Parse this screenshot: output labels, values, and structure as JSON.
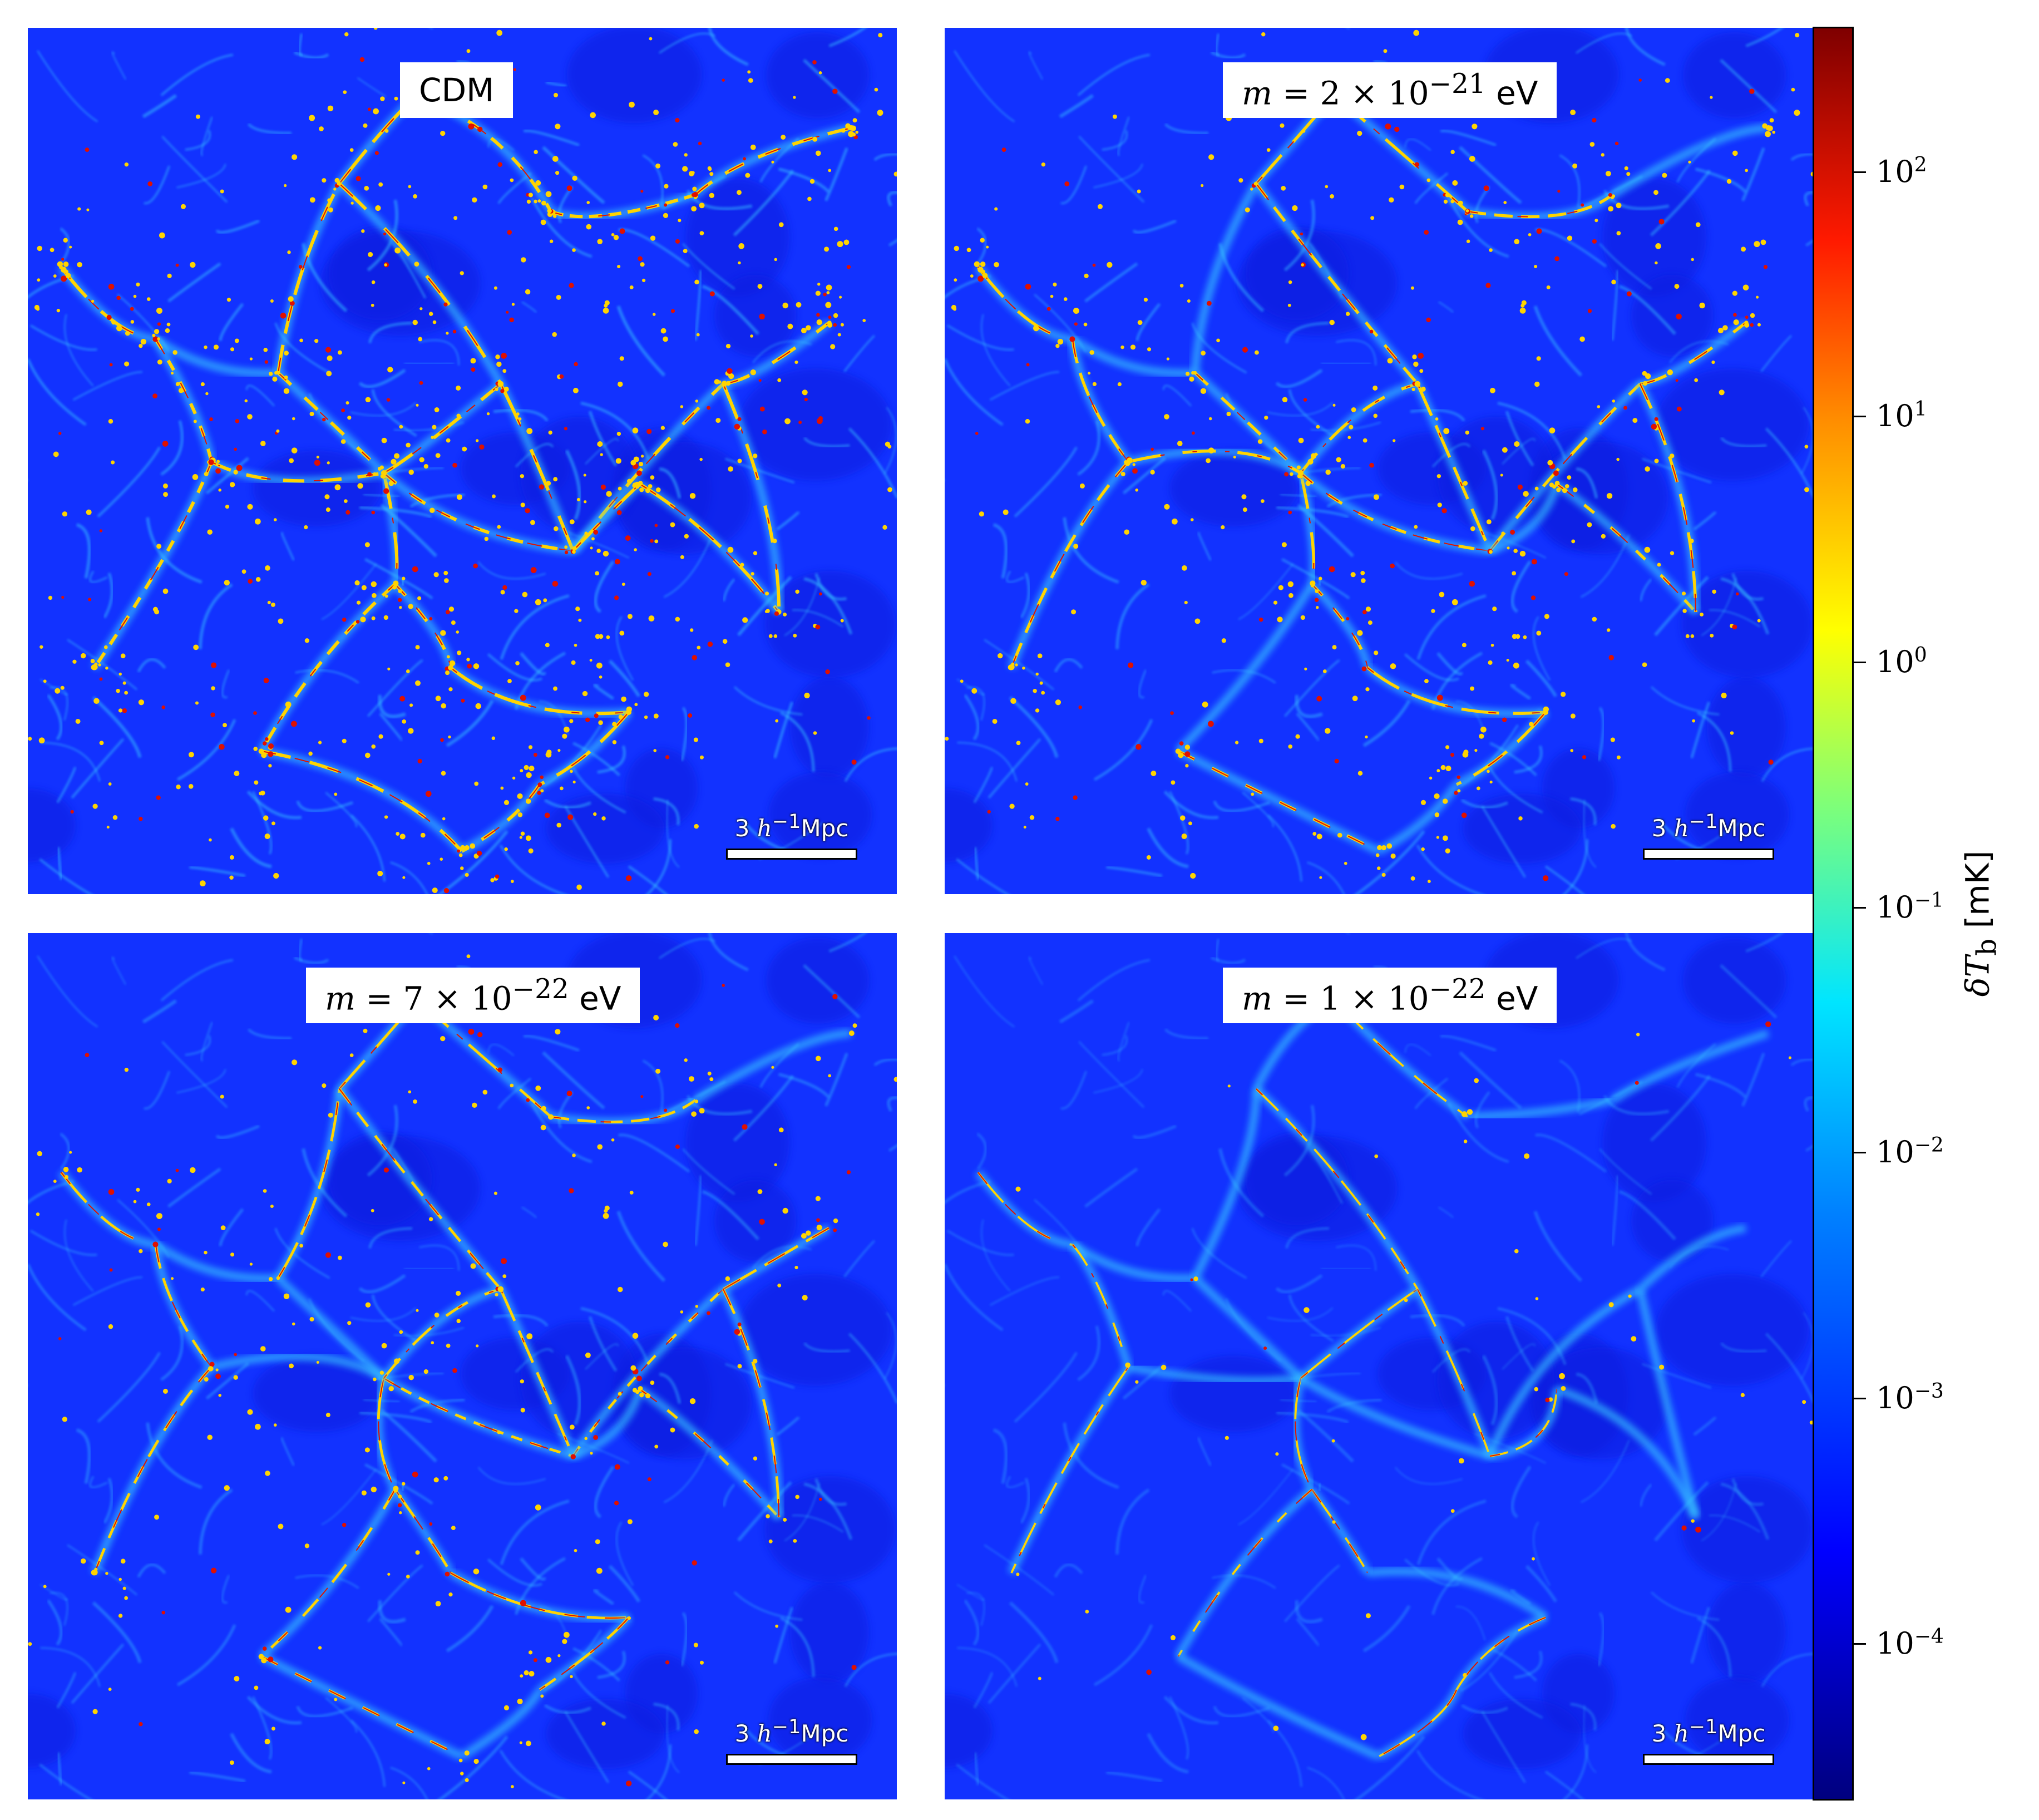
{
  "panels": [
    {
      "label": "CDM",
      "scale_text_pre": "3 ",
      "scale_text_h": "h",
      "scale_text_exp": "−1",
      "scale_text_unit": "Mpc",
      "structure_level": 1.0
    },
    {
      "label_pre": "m",
      "label_mid": " = 2 × 10",
      "label_exp": "−21",
      "label_unit": " eV",
      "scale_text_pre": "3 ",
      "scale_text_h": "h",
      "scale_text_exp": "−1",
      "scale_text_unit": "Mpc",
      "structure_level": 0.8
    },
    {
      "label_pre": "m",
      "label_mid": " = 7 × 10",
      "label_exp": "−22",
      "label_unit": " eV",
      "scale_text_pre": "3 ",
      "scale_text_h": "h",
      "scale_text_exp": "−1",
      "scale_text_unit": "Mpc",
      "structure_level": 0.6
    },
    {
      "label_pre": "m",
      "label_mid": " = 1 × 10",
      "label_exp": "−22",
      "label_unit": " eV",
      "scale_text_pre": "3 ",
      "scale_text_h": "h",
      "scale_text_exp": "−1",
      "scale_text_unit": "Mpc",
      "structure_level": 0.25
    }
  ],
  "colorbar": {
    "title_sym": "δT",
    "title_sub": "b",
    "title_unit": " [mK]",
    "colormap": "jet",
    "scale": "log",
    "ticks": [
      {
        "base": "10",
        "exp": "2"
      },
      {
        "base": "10",
        "exp": "1"
      },
      {
        "base": "10",
        "exp": "0"
      },
      {
        "base": "10",
        "exp": "−1"
      },
      {
        "base": "10",
        "exp": "−2"
      },
      {
        "base": "10",
        "exp": "−3"
      },
      {
        "base": "10",
        "exp": "−4"
      }
    ]
  },
  "colors": {
    "background_low": "#0a1ee0",
    "void": "#1232ff",
    "filament_mid": "#38c8ff",
    "filament_high": "#ffd400",
    "peak": "#e01000"
  }
}
